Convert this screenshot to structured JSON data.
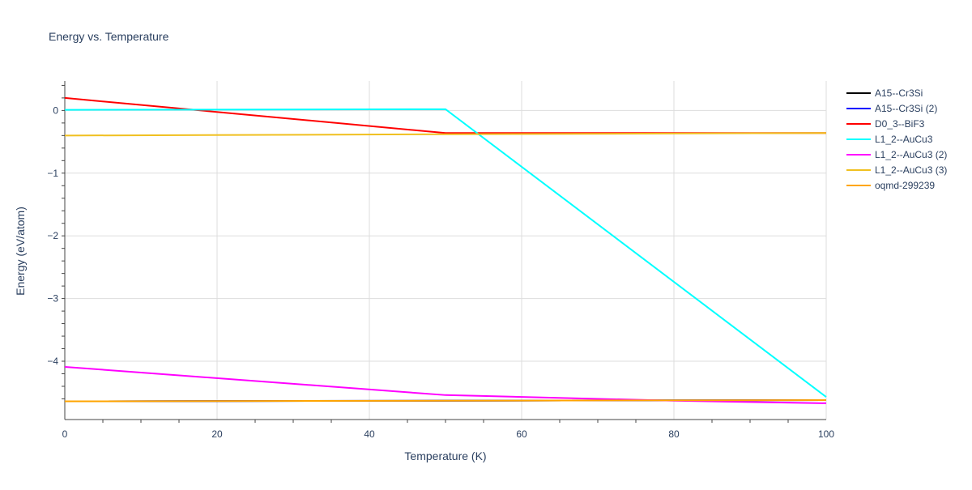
{
  "chart_data": {
    "type": "line",
    "title": "Energy vs. Temperature",
    "xlabel": "Temperature (K)",
    "ylabel": "Energy (eV/atom)",
    "xlim": [
      0,
      100
    ],
    "ylim": [
      -4.93,
      0.47
    ],
    "xticks": [
      0,
      20,
      40,
      60,
      80,
      100
    ],
    "yticks": [
      0,
      -1,
      -2,
      -3,
      -4
    ],
    "ytick_labels": [
      "0",
      "−1",
      "−2",
      "−3",
      "−4"
    ],
    "grid": true,
    "legend": "top-right",
    "series": [
      {
        "name": "A15--Cr3Si",
        "color": "#000000",
        "x": [
          0,
          50,
          100
        ],
        "y": [
          -4.64,
          -4.63,
          -4.62
        ]
      },
      {
        "name": "A15--Cr3Si (2)",
        "color": "#0000ff",
        "x": [
          0,
          50,
          100
        ],
        "y": [
          -4.64,
          -4.63,
          -4.62
        ]
      },
      {
        "name": "D0_3--BiF3",
        "color": "#ff0000",
        "x": [
          0,
          50,
          100
        ],
        "y": [
          0.2,
          -0.36,
          -0.36
        ]
      },
      {
        "name": "L1_2--AuCu3",
        "color": "#00ffff",
        "x": [
          0,
          50,
          100
        ],
        "y": [
          0.01,
          0.02,
          -4.57
        ]
      },
      {
        "name": "L1_2--AuCu3 (2)",
        "color": "#ff00ff",
        "x": [
          0,
          50,
          80,
          100
        ],
        "y": [
          -4.09,
          -4.54,
          -4.63,
          -4.67
        ]
      },
      {
        "name": "L1_2--AuCu3 (3)",
        "color": "#f0c020",
        "x": [
          0,
          50,
          100
        ],
        "y": [
          -0.4,
          -0.38,
          -0.36
        ]
      },
      {
        "name": "oqmd-299239",
        "color": "#ffa500",
        "x": [
          0,
          50,
          100
        ],
        "y": [
          -4.64,
          -4.63,
          -4.62
        ]
      }
    ]
  }
}
